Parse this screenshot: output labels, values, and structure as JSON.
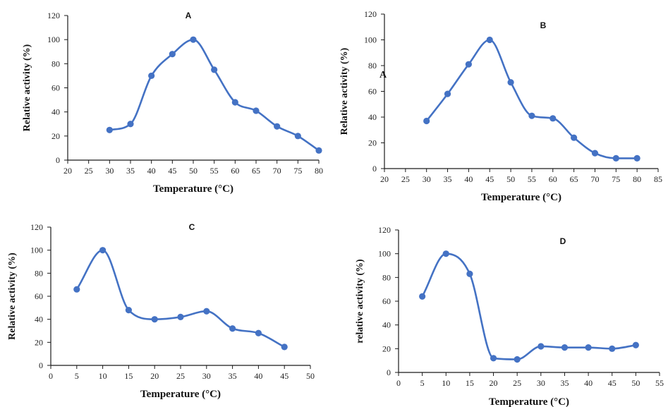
{
  "theme": {
    "series_color": "#4472C4",
    "marker_color": "#4472C4"
  },
  "chart_data": [
    {
      "type": "line",
      "title": "A",
      "xlabel": "Temperature (°C)",
      "ylabel": "Relative activity (%)",
      "xlim": [
        20,
        80
      ],
      "ylim": [
        0,
        120
      ],
      "xticks": [
        20,
        25,
        30,
        35,
        40,
        45,
        50,
        55,
        60,
        65,
        70,
        75,
        80
      ],
      "yticks": [
        0,
        20,
        40,
        60,
        80,
        100,
        120
      ],
      "grid": false,
      "series": [
        {
          "x": [
            30,
            35,
            40,
            45,
            50,
            55,
            60,
            65,
            70,
            75,
            80
          ],
          "y": [
            25,
            30,
            70,
            88,
            100,
            75,
            48,
            41,
            28,
            20,
            8
          ]
        }
      ],
      "annotations": []
    },
    {
      "type": "line",
      "title": "B",
      "xlabel": "Temperature (°C)",
      "ylabel": "Relative activity (%)",
      "xlim": [
        20,
        85
      ],
      "ylim": [
        0,
        120
      ],
      "xticks": [
        20,
        25,
        30,
        35,
        40,
        45,
        50,
        55,
        60,
        65,
        70,
        75,
        80,
        85
      ],
      "yticks": [
        0,
        20,
        40,
        60,
        80,
        100,
        120
      ],
      "grid": false,
      "series": [
        {
          "x": [
            30,
            35,
            40,
            45,
            50,
            55,
            60,
            65,
            70,
            75,
            80
          ],
          "y": [
            37,
            58,
            81,
            100,
            67,
            41,
            39,
            24,
            12,
            8,
            8
          ]
        }
      ],
      "annotations": [
        "A"
      ]
    },
    {
      "type": "line",
      "title": "C",
      "xlabel": "Temperature (°C)",
      "ylabel": "Relative activity (%)",
      "xlim": [
        0,
        50
      ],
      "ylim": [
        0,
        120
      ],
      "xticks": [
        0,
        5,
        10,
        15,
        20,
        25,
        30,
        35,
        40,
        45,
        50
      ],
      "yticks": [
        0,
        20,
        40,
        60,
        80,
        100,
        120
      ],
      "grid": false,
      "series": [
        {
          "x": [
            5,
            10,
            15,
            20,
            25,
            30,
            35,
            40,
            45
          ],
          "y": [
            66,
            100,
            48,
            40,
            42,
            47,
            32,
            28,
            16
          ]
        }
      ],
      "annotations": []
    },
    {
      "type": "line",
      "title": "D",
      "xlabel": "Temperature (°C)",
      "ylabel": "relative activity (%)",
      "xlim": [
        0,
        55
      ],
      "ylim": [
        0,
        120
      ],
      "xticks": [
        0,
        5,
        10,
        15,
        20,
        25,
        30,
        35,
        40,
        45,
        50,
        55
      ],
      "yticks": [
        0,
        20,
        40,
        60,
        80,
        100,
        120
      ],
      "grid": false,
      "series": [
        {
          "x": [
            5,
            10,
            15,
            20,
            25,
            30,
            35,
            40,
            45,
            50
          ],
          "y": [
            64,
            100,
            83,
            12,
            11,
            22,
            21,
            21,
            20,
            23
          ]
        }
      ],
      "annotations": []
    }
  ]
}
